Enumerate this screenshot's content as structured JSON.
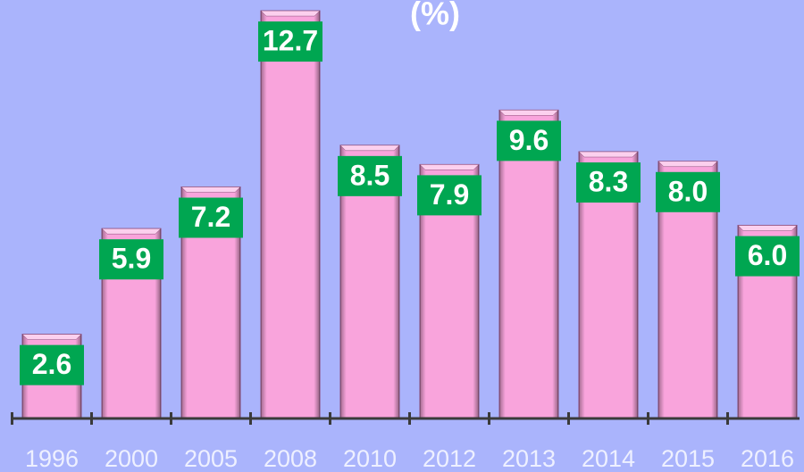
{
  "chart_data": {
    "type": "bar",
    "title": "(%)",
    "categories": [
      "1996",
      "2000",
      "2005",
      "2008",
      "2010",
      "2012",
      "2013",
      "2014",
      "2015",
      "2016"
    ],
    "values": [
      2.6,
      5.9,
      7.2,
      12.7,
      8.5,
      7.9,
      9.6,
      8.3,
      8.0,
      6.0
    ],
    "value_labels": [
      "2.6",
      "5.9",
      "7.2",
      "12.7",
      "8.5",
      "7.9",
      "9.6",
      "8.3",
      "8.0",
      "6.0"
    ],
    "color": "#f9a4dc",
    "label_color": "#00a651"
  }
}
